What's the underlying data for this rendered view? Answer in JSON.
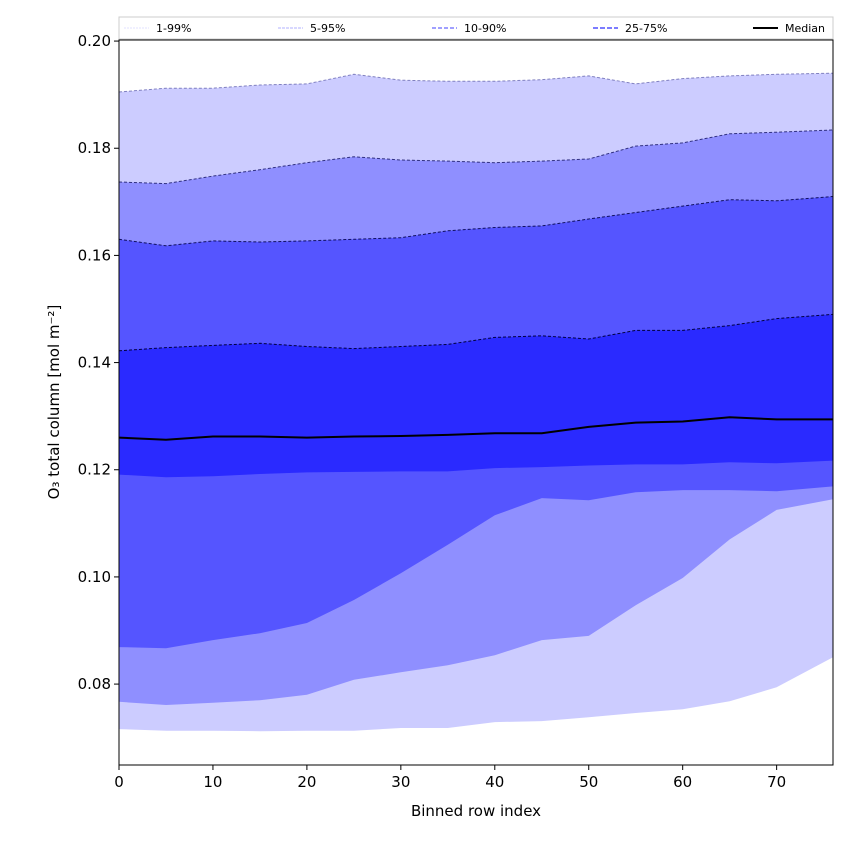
{
  "chart_data": {
    "type": "area",
    "title": "",
    "xlabel": "Binned row index",
    "ylabel": "O₃ total column [mol m⁻²]",
    "xlim": [
      0,
      76
    ],
    "ylim": [
      0.0649,
      0.2002
    ],
    "xticks": [
      0,
      10,
      20,
      30,
      40,
      50,
      60,
      70
    ],
    "yticks": [
      0.08,
      0.1,
      0.12,
      0.14,
      0.16,
      0.18,
      0.2
    ],
    "ytick_labels": [
      "0.08",
      "0.10",
      "0.12",
      "0.14",
      "0.16",
      "0.18",
      "0.20"
    ],
    "legend_position": "top (above axes)",
    "x": [
      0,
      5,
      10,
      15,
      20,
      25,
      30,
      35,
      40,
      45,
      50,
      55,
      60,
      65,
      70,
      76
    ],
    "bands": [
      {
        "name": "1-99%",
        "fill": "#ccccff",
        "edge": "#8080c0",
        "lower": [
          0.0716,
          0.0713,
          0.0713,
          0.0712,
          0.0713,
          0.0713,
          0.0718,
          0.0718,
          0.0729,
          0.0731,
          0.0738,
          0.0746,
          0.0753,
          0.0768,
          0.0794,
          0.085
        ],
        "upper": [
          0.1905,
          0.1912,
          0.1912,
          0.1918,
          0.192,
          0.1938,
          0.1927,
          0.1925,
          0.1925,
          0.1928,
          0.1935,
          0.192,
          0.193,
          0.1935,
          0.1938,
          0.194
        ]
      },
      {
        "name": "5-95%",
        "fill": "#8f8fff",
        "edge": "#303080",
        "lower": [
          0.0767,
          0.0761,
          0.0765,
          0.077,
          0.078,
          0.0808,
          0.0822,
          0.0835,
          0.0854,
          0.0882,
          0.089,
          0.0947,
          0.0998,
          0.107,
          0.1125,
          0.1145
        ],
        "upper": [
          0.1737,
          0.1734,
          0.1748,
          0.176,
          0.1773,
          0.1784,
          0.1778,
          0.1776,
          0.1773,
          0.1776,
          0.178,
          0.1804,
          0.181,
          0.1827,
          0.183,
          0.1834
        ]
      },
      {
        "name": "10-90%",
        "fill": "#5555ff",
        "edge": "#101060",
        "lower": [
          0.0869,
          0.0867,
          0.0882,
          0.0895,
          0.0914,
          0.0957,
          0.1007,
          0.106,
          0.1115,
          0.1147,
          0.1143,
          0.1158,
          0.1162,
          0.1162,
          0.116,
          0.1169
        ],
        "upper": [
          0.163,
          0.1618,
          0.1627,
          0.1625,
          0.1627,
          0.163,
          0.1633,
          0.1646,
          0.1652,
          0.1655,
          0.1668,
          0.168,
          0.1692,
          0.1704,
          0.1702,
          0.171
        ]
      },
      {
        "name": "25-75%",
        "fill": "#2a2aff",
        "edge": "#000040",
        "lower": [
          0.1191,
          0.1186,
          0.1188,
          0.1192,
          0.1195,
          0.1196,
          0.1197,
          0.1197,
          0.1203,
          0.1205,
          0.1208,
          0.121,
          0.121,
          0.1214,
          0.1212,
          0.1217
        ],
        "upper": [
          0.1422,
          0.1428,
          0.1432,
          0.1436,
          0.143,
          0.1426,
          0.143,
          0.1434,
          0.1447,
          0.145,
          0.1444,
          0.146,
          0.146,
          0.1469,
          0.1482,
          0.149
        ]
      }
    ],
    "median": {
      "name": "Median",
      "color": "#000000",
      "values": [
        0.126,
        0.1256,
        0.1262,
        0.1262,
        0.126,
        0.1262,
        0.1263,
        0.1265,
        0.1268,
        0.1268,
        0.128,
        0.1288,
        0.129,
        0.1298,
        0.1294,
        0.1294
      ]
    },
    "legend": [
      {
        "label": "1-99%",
        "color": "#e0e0ff"
      },
      {
        "label": "5-95%",
        "color": "#b0b0ff"
      },
      {
        "label": "10-90%",
        "color": "#8080ff"
      },
      {
        "label": "25-75%",
        "color": "#5050ff"
      },
      {
        "label": "Median",
        "color": "#000000"
      }
    ]
  }
}
